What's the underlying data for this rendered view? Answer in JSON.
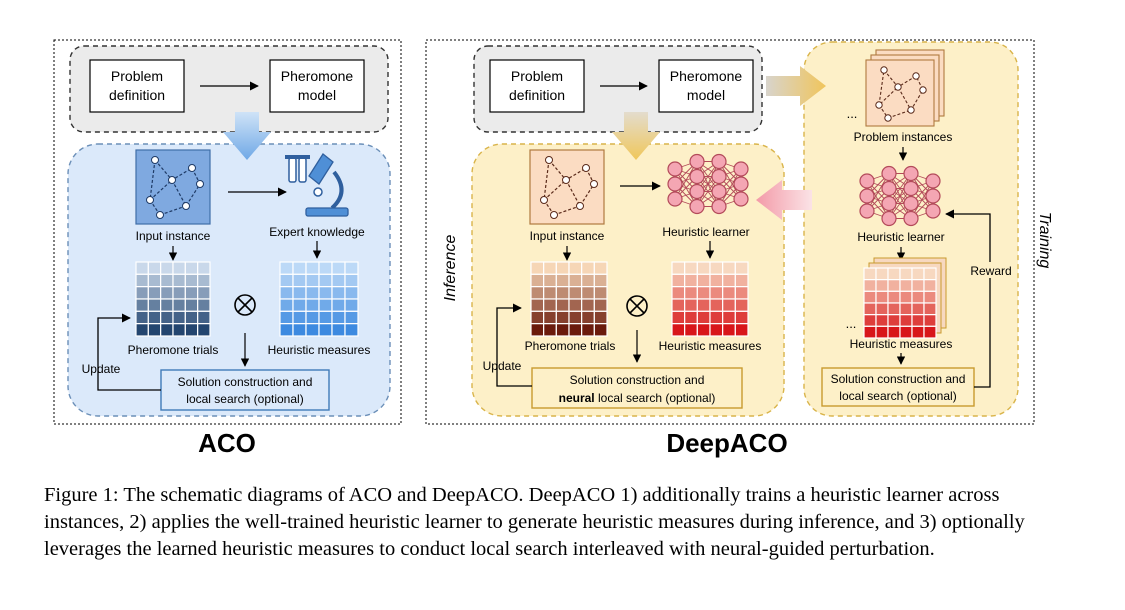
{
  "aco": {
    "title": "ACO",
    "problem_definition": [
      "Problem",
      "definition"
    ],
    "pheromone_model": [
      "Pheromone",
      "model"
    ],
    "input_instance": "Input instance",
    "expert_knowledge": "Expert knowledge",
    "pheromone_trials": "Pheromone trials",
    "heuristic_measures": "Heuristic measures",
    "solution": [
      "Solution construction and",
      "local search (optional)"
    ],
    "update": "Update"
  },
  "deepaco": {
    "title": "DeepACO",
    "problem_definition": [
      "Problem",
      "definition"
    ],
    "pheromone_model": [
      "Pheromone",
      "model"
    ],
    "input_instance": "Input instance",
    "heuristic_learner": "Heuristic learner",
    "pheromone_trials": "Pheromone trials",
    "heuristic_measures": "Heuristic measures",
    "solution_line1": "Solution construction and",
    "solution_bold": "neural",
    "solution_rest": " local search (optional)",
    "update": "Update",
    "inference": "Inference",
    "training": "Training",
    "problem_instances": "Problem instances",
    "heuristic_learner_train": "Heuristic learner",
    "heuristic_measures_train": "Heuristic measures",
    "solution_train": [
      "Solution construction and",
      "local search (optional)"
    ],
    "reward": "Reward",
    "ellipsis": "..."
  },
  "colors": {
    "aco_panel": "#dbe9fa",
    "aco_stroke": "#6b8fb8",
    "deep_panel": "#fdf0c8",
    "deep_stroke": "#d9b44a",
    "gray_panel": "#ebebeb",
    "blue_arrow": "#7fb2e6",
    "tan_arrow": "#d9c48f",
    "pink_arrow": "#f3b0b8",
    "gray_arrow": "#c9c3b2",
    "node_pink": "#f4a6b3",
    "node_stroke": "#b34a5a"
  },
  "caption": "Figure 1: The schematic diagrams of ACO and DeepACO. DeepACO 1) additionally trains a heuristic learner across instances, 2) applies the well-trained heuristic learner to generate heuristic measures during inference, and 3) optionally leverages the learned heuristic measures to conduct local search interleaved with neural-guided perturbation."
}
